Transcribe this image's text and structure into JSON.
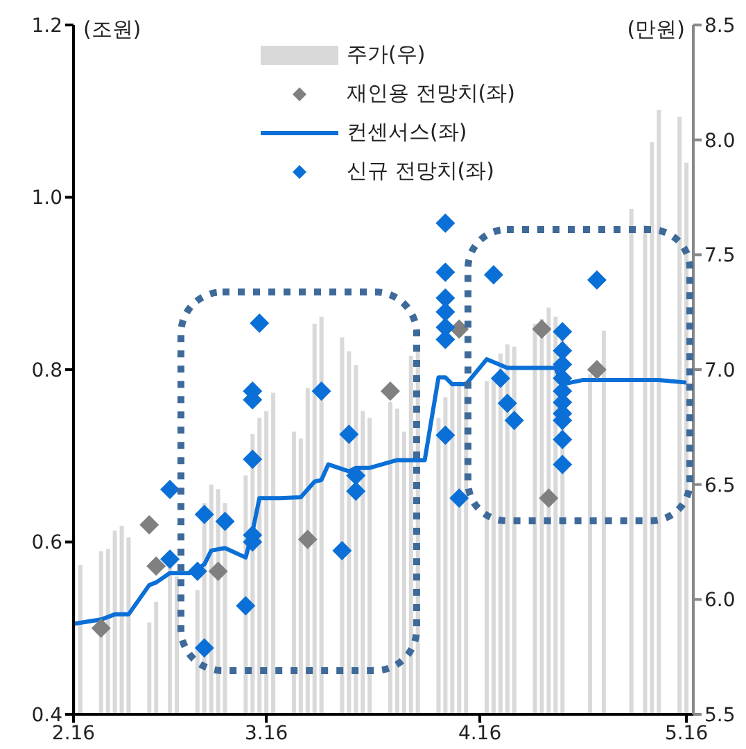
{
  "chart_data": {
    "type": "scatter",
    "ylabel": "(조원)",
    "y2label": "(만원)",
    "xlim": [
      "--02-16",
      "--05-17"
    ],
    "xticks": [
      {
        "value": "--02-16",
        "label": "2.16"
      },
      {
        "value": "--03-16",
        "label": "3.16"
      },
      {
        "value": "--04-16",
        "label": "4.16"
      },
      {
        "value": "--05-16",
        "label": "5.16"
      }
    ],
    "ylim": [
      0.4,
      1.2
    ],
    "yticks": [
      0.4,
      0.6,
      0.8,
      {
        "value": 1,
        "label": "1.0"
      },
      1.2
    ],
    "y2lim": [
      5.5,
      8.5
    ],
    "y2ticks": [
      5.5,
      {
        "value": 6,
        "label": "6.0"
      },
      6.5,
      {
        "value": 7,
        "label": "7.0"
      },
      7.5,
      {
        "value": 8,
        "label": "8.0"
      },
      8.5
    ],
    "legend": "top",
    "grid": false,
    "series": [
      {
        "name": "주가(우)",
        "type": "bar",
        "axis": "y2",
        "color": "#d9d9d9",
        "x": [
          "--02-16",
          "--02-17",
          "--02-20",
          "--02-21",
          "--02-22",
          "--02-23",
          "--02-24",
          "--02-27",
          "--02-28",
          "--03-02",
          "--03-03",
          "--03-06",
          "--03-07",
          "--03-08",
          "--03-09",
          "--03-10",
          "--03-13",
          "--03-14",
          "--03-15",
          "--03-16",
          "--03-17",
          "--03-20",
          "--03-21",
          "--03-22",
          "--03-23",
          "--03-24",
          "--03-27",
          "--03-28",
          "--03-29",
          "--03-30",
          "--03-31",
          "--04-03",
          "--04-04",
          "--04-05",
          "--04-06",
          "--04-07",
          "--04-10",
          "--04-11",
          "--04-12",
          "--04-13",
          "--04-14",
          "--04-17",
          "--04-18",
          "--04-19",
          "--04-20",
          "--04-21",
          "--04-24",
          "--04-25",
          "--04-26",
          "--04-27",
          "--04-28",
          "--05-02",
          "--05-04",
          "--05-08",
          "--05-10",
          "--05-11",
          "--05-12",
          "--05-15",
          "--05-16"
        ],
        "values": [
          6.27,
          6.15,
          6.21,
          6.22,
          6.3,
          6.32,
          6.27,
          5.9,
          5.99,
          6.15,
          6.1,
          6.04,
          6.42,
          6.5,
          6.48,
          6.42,
          6.54,
          6.72,
          6.79,
          6.82,
          6.9,
          6.73,
          6.7,
          6.92,
          7.2,
          7.23,
          7.14,
          7.08,
          7.02,
          6.82,
          6.79,
          6.86,
          6.83,
          6.73,
          7.06,
          7.09,
          6.79,
          6.88,
          6.93,
          6.95,
          6.95,
          6.95,
          6.97,
          7.07,
          7.11,
          7.1,
          7.2,
          7.22,
          7.27,
          7.23,
          7.2,
          6.98,
          7.17,
          7.7,
          7.63,
          7.99,
          8.13,
          8.1,
          7.9
        ]
      },
      {
        "name": "재인용 전망치(좌)",
        "marker": "diamond",
        "color": "#808080",
        "x": [
          "--02-20",
          "--02-27",
          "--02-28",
          "--03-09",
          "--03-22",
          "--04-03",
          "--04-13",
          "--04-25",
          "--04-26",
          "--05-03"
        ],
        "values": [
          0.5,
          0.62,
          0.572,
          0.566,
          0.603,
          0.775,
          0.847,
          0.847,
          0.651,
          0.8
        ]
      },
      {
        "name": "컨센서스(좌)",
        "type": "line",
        "color": "#0a6fd6",
        "line_style": "solid",
        "x": [
          "--02-16",
          "--02-20",
          "--02-22",
          "--02-24",
          "--02-27",
          "--02-28",
          "--03-02",
          "--03-05",
          "--03-07",
          "--03-08",
          "--03-10",
          "--03-13",
          "--03-14",
          "--03-15",
          "--03-18",
          "--03-21",
          "--03-23",
          "--03-24",
          "--03-25",
          "--03-28",
          "--03-29",
          "--03-31",
          "--04-04",
          "--04-08",
          "--04-10",
          "--04-11",
          "--04-12",
          "--04-14",
          "--04-17",
          "--04-20",
          "--04-27",
          "--04-28",
          "--05-01",
          "--05-12",
          "--05-16"
        ],
        "values": [
          0.505,
          0.51,
          0.516,
          0.516,
          0.55,
          0.553,
          0.564,
          0.564,
          0.574,
          0.59,
          0.593,
          0.582,
          0.612,
          0.651,
          0.651,
          0.652,
          0.67,
          0.672,
          0.69,
          0.682,
          0.686,
          0.686,
          0.695,
          0.695,
          0.791,
          0.791,
          0.783,
          0.783,
          0.812,
          0.802,
          0.802,
          0.783,
          0.788,
          0.788,
          0.785
        ]
      },
      {
        "name": "신규 전망치(좌)",
        "marker": "diamond",
        "color": "#0a6fd6",
        "x": [
          "--03-02",
          "--03-02",
          "--03-06",
          "--03-07",
          "--03-07",
          "--03-10",
          "--03-13",
          "--03-14",
          "--03-14",
          "--03-14",
          "--03-14",
          "--03-14",
          "--03-15",
          "--03-24",
          "--03-27",
          "--03-28",
          "--03-29",
          "--03-29",
          "--04-11",
          "--04-11",
          "--04-11",
          "--04-11",
          "--04-11",
          "--04-11",
          "--04-11",
          "--04-13",
          "--04-18",
          "--04-19",
          "--04-20",
          "--04-21",
          "--04-28",
          "--04-28",
          "--04-28",
          "--04-28",
          "--04-28",
          "--04-28",
          "--04-28",
          "--04-28",
          "--04-28",
          "--04-28",
          "--05-03"
        ],
        "values": [
          0.661,
          0.58,
          0.566,
          0.632,
          0.477,
          0.624,
          0.526,
          0.775,
          0.765,
          0.696,
          0.608,
          0.6,
          0.854,
          0.775,
          0.59,
          0.725,
          0.677,
          0.659,
          0.97,
          0.913,
          0.883,
          0.867,
          0.849,
          0.835,
          0.724,
          0.651,
          0.91,
          0.79,
          0.761,
          0.741,
          0.844,
          0.822,
          0.806,
          0.79,
          0.775,
          0.762,
          0.749,
          0.741,
          0.719,
          0.69,
          0.904
        ]
      }
    ]
  }
}
